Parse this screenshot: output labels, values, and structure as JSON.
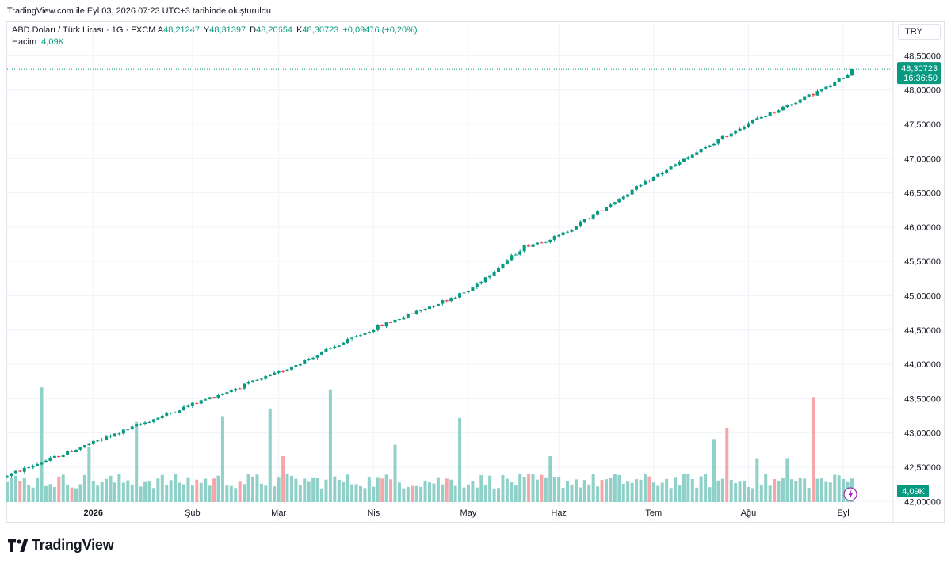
{
  "caption": "TradingView.com ile Eyl 03, 2026 07:23 UTC+3 tarihinde oluşturuldu",
  "symbol": "ABD Doları / Türk Lirası · 1G · FXCM",
  "ohlc": {
    "open_label": "A",
    "open": "48,21247",
    "high_label": "Y",
    "high": "48,31397",
    "low_label": "D",
    "low": "48,20654",
    "close_label": "K",
    "close": "48,30723",
    "change": "+0,09476 (+0,20%)"
  },
  "volume": {
    "label": "Hacim",
    "value": "4,09K"
  },
  "currency_button": "TRY",
  "price_tag": {
    "price": "48,30723",
    "countdown": "16:36:50"
  },
  "volume_tag": "4,09K",
  "logo_text": "TradingView",
  "colors": {
    "up": "#089981",
    "down": "#f23645",
    "up_volume": "#8fd1c8",
    "down_volume": "#f5a6a9",
    "grid": "#f0f3fa"
  },
  "chart_data": {
    "type": "candlestick",
    "title": "ABD Doları / Türk Lirası · 1G · FXCM",
    "y_ticks": [
      "48,50000",
      "48,00000",
      "47,50000",
      "47,00000",
      "46,50000",
      "46,00000",
      "45,50000",
      "45,00000",
      "44,50000",
      "44,00000",
      "43,50000",
      "43,00000",
      "42,50000",
      "42,00000"
    ],
    "y_tick_values": [
      48.5,
      48.0,
      47.5,
      47.0,
      46.5,
      46.0,
      45.5,
      45.0,
      44.5,
      44.0,
      43.5,
      43.0,
      42.5,
      42.0
    ],
    "ylim": [
      41.98,
      48.62
    ],
    "x_ticks": [
      {
        "label": "2026",
        "bold": true,
        "index": 20
      },
      {
        "label": "Şub",
        "index": 43
      },
      {
        "label": "Mar",
        "index": 63
      },
      {
        "label": "Nis",
        "index": 85
      },
      {
        "label": "May",
        "index": 107
      },
      {
        "label": "Haz",
        "index": 128
      },
      {
        "label": "Tem",
        "index": 150
      },
      {
        "label": "Ağu",
        "index": 172
      },
      {
        "label": "Eyl",
        "index": 194
      }
    ],
    "candle_count": 197,
    "start_close": 42.38,
    "path_points": [
      [
        0,
        42.38
      ],
      [
        20,
        42.86
      ],
      [
        43,
        43.42
      ],
      [
        63,
        43.88
      ],
      [
        85,
        44.52
      ],
      [
        107,
        45.07
      ],
      [
        120,
        45.72
      ],
      [
        128,
        45.87
      ],
      [
        150,
        46.73
      ],
      [
        172,
        47.52
      ],
      [
        190,
        48.03
      ],
      [
        197,
        48.31
      ]
    ],
    "last_candle": {
      "open": 48.21247,
      "high": 48.31397,
      "low": 48.20654,
      "close": 48.30723
    },
    "volume_peaks": [
      {
        "index": 8,
        "volume": 12.0
      },
      {
        "index": 19,
        "volume": 5.8
      },
      {
        "index": 30,
        "volume": 8.4
      },
      {
        "index": 50,
        "volume": 9.0
      },
      {
        "index": 61,
        "volume": 9.8
      },
      {
        "index": 64,
        "volume": 4.8
      },
      {
        "index": 75,
        "volume": 11.8
      },
      {
        "index": 90,
        "volume": 6.0
      },
      {
        "index": 105,
        "volume": 8.8
      },
      {
        "index": 126,
        "volume": 4.8
      },
      {
        "index": 164,
        "volume": 6.6
      },
      {
        "index": 167,
        "volume": 7.8
      },
      {
        "index": 174,
        "volume": 4.6
      },
      {
        "index": 181,
        "volume": 4.6
      },
      {
        "index": 187,
        "volume": 11.0
      },
      {
        "index": 193,
        "volume": 2.8
      }
    ],
    "volume_base": [
      1.4,
      3.0
    ]
  }
}
